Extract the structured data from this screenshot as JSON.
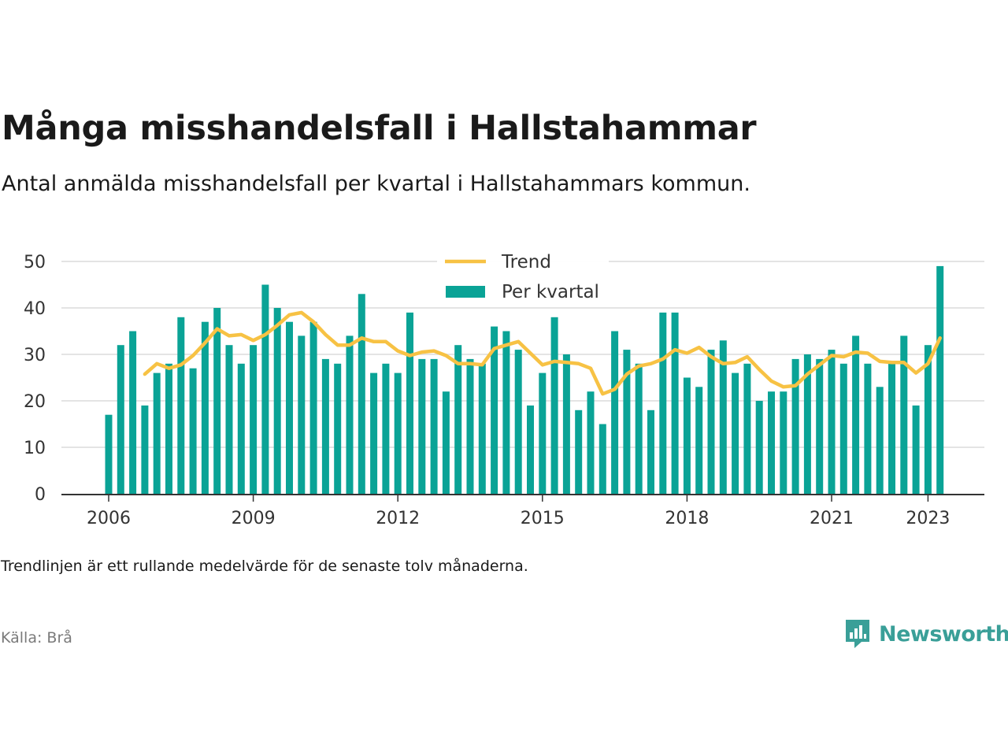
{
  "title": "Många misshandelsfall i Hallstahammar",
  "subtitle": "Antal anmälda misshandelsfall per kvartal i Hallstahammars kommun.",
  "note": "Trendlinjen är ett rullande medelvärde för de senaste tolv månaderna.",
  "source": "Källa: Brå",
  "brand": "Newsworthy",
  "colors": {
    "bars": "#0aa396",
    "trend": "#f7c244",
    "brand": "#3a9f98"
  },
  "chart_data": {
    "type": "bar",
    "title": "Många misshandelsfall i Hallstahammar",
    "xlabel": "",
    "ylabel": "",
    "ylim": [
      0,
      50
    ],
    "yticks": [
      0,
      10,
      20,
      30,
      40,
      50
    ],
    "xticks": [
      "2006",
      "2009",
      "2012",
      "2015",
      "2018",
      "2021",
      "2023"
    ],
    "grid": true,
    "legend": "top-center",
    "start_year": 2006,
    "series": [
      {
        "name": "Per kvartal",
        "type": "bar",
        "values": [
          17,
          32,
          35,
          19,
          26,
          28,
          38,
          27,
          37,
          40,
          32,
          28,
          32,
          45,
          40,
          37,
          34,
          37,
          29,
          28,
          34,
          43,
          26,
          28,
          26,
          39,
          29,
          29,
          22,
          32,
          29,
          28,
          36,
          35,
          31,
          19,
          26,
          38,
          30,
          18,
          22,
          15,
          35,
          31,
          28,
          18,
          39,
          39,
          25,
          23,
          31,
          33,
          26,
          28,
          20,
          22,
          22,
          29,
          30,
          29,
          31,
          28,
          34,
          28,
          23,
          28,
          34,
          19,
          32,
          49
        ]
      },
      {
        "name": "Trend",
        "type": "line",
        "values": [
          null,
          null,
          null,
          25.75,
          28,
          27,
          27.75,
          29.75,
          32.5,
          35.5,
          34,
          34.25,
          33,
          34.25,
          36.25,
          38.5,
          39,
          37,
          34.25,
          32,
          32,
          33.5,
          32.75,
          32.75,
          30.75,
          29.75,
          30.5,
          30.75,
          29.75,
          28,
          28,
          27.75,
          31.25,
          32,
          32.75,
          30.25,
          27.75,
          28.5,
          28.25,
          28,
          27,
          21.5,
          22.5,
          25.75,
          27.5,
          28,
          29,
          31,
          30.25,
          31.5,
          29.5,
          28,
          28.25,
          29.5,
          26.75,
          24.25,
          23,
          23.25,
          25.75,
          27.75,
          29.75,
          29.5,
          30.5,
          30.25,
          28.5,
          28.25,
          28.25,
          26,
          28,
          33.5
        ]
      }
    ]
  }
}
